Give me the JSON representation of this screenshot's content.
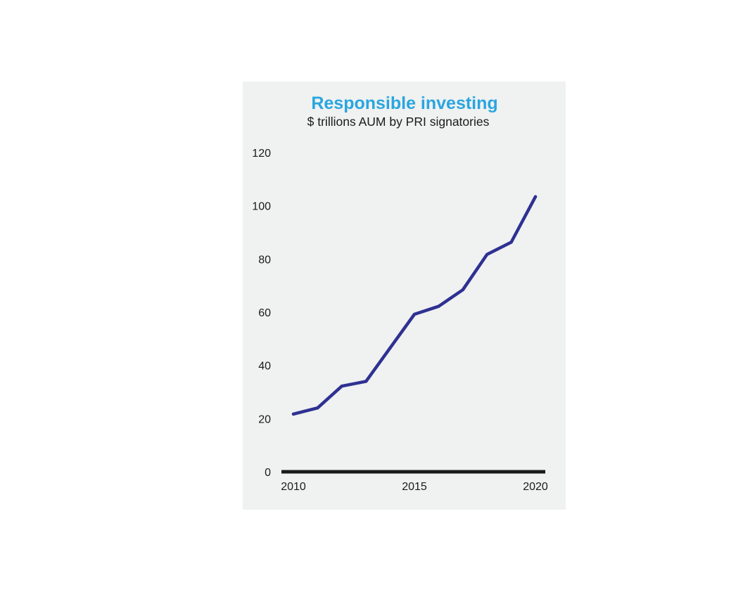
{
  "chart_data": {
    "type": "line",
    "title": "Responsible investing",
    "subtitle": "$ trillions AUM by PRI signatories",
    "xlabel": "",
    "ylabel": "",
    "x": [
      2010,
      2011,
      2012,
      2013,
      2014,
      2015,
      2016,
      2017,
      2018,
      2019,
      2020
    ],
    "series": [
      {
        "name": "AUM by PRI signatories",
        "values": [
          21.7,
          24.0,
          32.2,
          34.0,
          46.6,
          59.2,
          62.2,
          68.4,
          81.7,
          86.3,
          103.4
        ]
      }
    ],
    "xlim": [
      2010,
      2020
    ],
    "ylim": [
      0,
      120
    ],
    "xticks": [
      "2010",
      "2015",
      "2020"
    ],
    "yticks": [
      "0",
      "20",
      "40",
      "60",
      "80",
      "100",
      "120"
    ],
    "grid": false,
    "legend": "none"
  },
  "colors": {
    "title": "#29a6e0",
    "line": "#2e3192",
    "axis": "#1a1a1a",
    "panel": "#f0f1f1"
  }
}
